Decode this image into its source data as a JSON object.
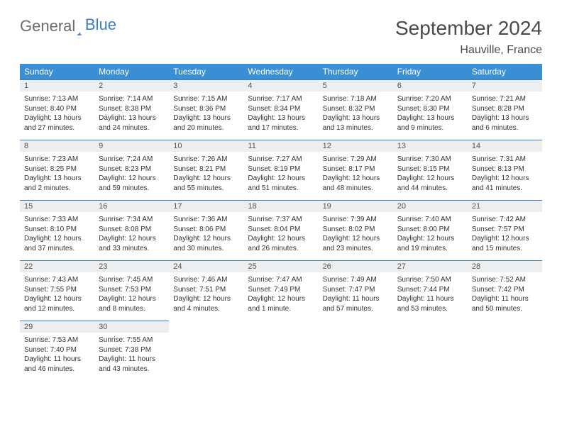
{
  "brand": {
    "part1": "General",
    "part2": "Blue"
  },
  "title": "September 2024",
  "location": "Hauville, France",
  "colors": {
    "header_bg": "#3a8fd4",
    "header_fg": "#ffffff",
    "row_divider": "#3a7fbf",
    "daynum_bg": "#eceeef",
    "text": "#333333",
    "logo_gray": "#6b6b6b",
    "logo_blue": "#3a7fbf",
    "page_bg": "#ffffff"
  },
  "typography": {
    "title_fontsize": 28,
    "location_fontsize": 16,
    "dayhead_fontsize": 12,
    "daynum_fontsize": 11,
    "detail_fontsize": 10
  },
  "weekdays": [
    "Sunday",
    "Monday",
    "Tuesday",
    "Wednesday",
    "Thursday",
    "Friday",
    "Saturday"
  ],
  "weeks": [
    [
      {
        "day": "1",
        "sunrise": "Sunrise: 7:13 AM",
        "sunset": "Sunset: 8:40 PM",
        "daylight": "Daylight: 13 hours and 27 minutes."
      },
      {
        "day": "2",
        "sunrise": "Sunrise: 7:14 AM",
        "sunset": "Sunset: 8:38 PM",
        "daylight": "Daylight: 13 hours and 24 minutes."
      },
      {
        "day": "3",
        "sunrise": "Sunrise: 7:15 AM",
        "sunset": "Sunset: 8:36 PM",
        "daylight": "Daylight: 13 hours and 20 minutes."
      },
      {
        "day": "4",
        "sunrise": "Sunrise: 7:17 AM",
        "sunset": "Sunset: 8:34 PM",
        "daylight": "Daylight: 13 hours and 17 minutes."
      },
      {
        "day": "5",
        "sunrise": "Sunrise: 7:18 AM",
        "sunset": "Sunset: 8:32 PM",
        "daylight": "Daylight: 13 hours and 13 minutes."
      },
      {
        "day": "6",
        "sunrise": "Sunrise: 7:20 AM",
        "sunset": "Sunset: 8:30 PM",
        "daylight": "Daylight: 13 hours and 9 minutes."
      },
      {
        "day": "7",
        "sunrise": "Sunrise: 7:21 AM",
        "sunset": "Sunset: 8:28 PM",
        "daylight": "Daylight: 13 hours and 6 minutes."
      }
    ],
    [
      {
        "day": "8",
        "sunrise": "Sunrise: 7:23 AM",
        "sunset": "Sunset: 8:25 PM",
        "daylight": "Daylight: 13 hours and 2 minutes."
      },
      {
        "day": "9",
        "sunrise": "Sunrise: 7:24 AM",
        "sunset": "Sunset: 8:23 PM",
        "daylight": "Daylight: 12 hours and 59 minutes."
      },
      {
        "day": "10",
        "sunrise": "Sunrise: 7:26 AM",
        "sunset": "Sunset: 8:21 PM",
        "daylight": "Daylight: 12 hours and 55 minutes."
      },
      {
        "day": "11",
        "sunrise": "Sunrise: 7:27 AM",
        "sunset": "Sunset: 8:19 PM",
        "daylight": "Daylight: 12 hours and 51 minutes."
      },
      {
        "day": "12",
        "sunrise": "Sunrise: 7:29 AM",
        "sunset": "Sunset: 8:17 PM",
        "daylight": "Daylight: 12 hours and 48 minutes."
      },
      {
        "day": "13",
        "sunrise": "Sunrise: 7:30 AM",
        "sunset": "Sunset: 8:15 PM",
        "daylight": "Daylight: 12 hours and 44 minutes."
      },
      {
        "day": "14",
        "sunrise": "Sunrise: 7:31 AM",
        "sunset": "Sunset: 8:13 PM",
        "daylight": "Daylight: 12 hours and 41 minutes."
      }
    ],
    [
      {
        "day": "15",
        "sunrise": "Sunrise: 7:33 AM",
        "sunset": "Sunset: 8:10 PM",
        "daylight": "Daylight: 12 hours and 37 minutes."
      },
      {
        "day": "16",
        "sunrise": "Sunrise: 7:34 AM",
        "sunset": "Sunset: 8:08 PM",
        "daylight": "Daylight: 12 hours and 33 minutes."
      },
      {
        "day": "17",
        "sunrise": "Sunrise: 7:36 AM",
        "sunset": "Sunset: 8:06 PM",
        "daylight": "Daylight: 12 hours and 30 minutes."
      },
      {
        "day": "18",
        "sunrise": "Sunrise: 7:37 AM",
        "sunset": "Sunset: 8:04 PM",
        "daylight": "Daylight: 12 hours and 26 minutes."
      },
      {
        "day": "19",
        "sunrise": "Sunrise: 7:39 AM",
        "sunset": "Sunset: 8:02 PM",
        "daylight": "Daylight: 12 hours and 23 minutes."
      },
      {
        "day": "20",
        "sunrise": "Sunrise: 7:40 AM",
        "sunset": "Sunset: 8:00 PM",
        "daylight": "Daylight: 12 hours and 19 minutes."
      },
      {
        "day": "21",
        "sunrise": "Sunrise: 7:42 AM",
        "sunset": "Sunset: 7:57 PM",
        "daylight": "Daylight: 12 hours and 15 minutes."
      }
    ],
    [
      {
        "day": "22",
        "sunrise": "Sunrise: 7:43 AM",
        "sunset": "Sunset: 7:55 PM",
        "daylight": "Daylight: 12 hours and 12 minutes."
      },
      {
        "day": "23",
        "sunrise": "Sunrise: 7:45 AM",
        "sunset": "Sunset: 7:53 PM",
        "daylight": "Daylight: 12 hours and 8 minutes."
      },
      {
        "day": "24",
        "sunrise": "Sunrise: 7:46 AM",
        "sunset": "Sunset: 7:51 PM",
        "daylight": "Daylight: 12 hours and 4 minutes."
      },
      {
        "day": "25",
        "sunrise": "Sunrise: 7:47 AM",
        "sunset": "Sunset: 7:49 PM",
        "daylight": "Daylight: 12 hours and 1 minute."
      },
      {
        "day": "26",
        "sunrise": "Sunrise: 7:49 AM",
        "sunset": "Sunset: 7:47 PM",
        "daylight": "Daylight: 11 hours and 57 minutes."
      },
      {
        "day": "27",
        "sunrise": "Sunrise: 7:50 AM",
        "sunset": "Sunset: 7:44 PM",
        "daylight": "Daylight: 11 hours and 53 minutes."
      },
      {
        "day": "28",
        "sunrise": "Sunrise: 7:52 AM",
        "sunset": "Sunset: 7:42 PM",
        "daylight": "Daylight: 11 hours and 50 minutes."
      }
    ],
    [
      {
        "day": "29",
        "sunrise": "Sunrise: 7:53 AM",
        "sunset": "Sunset: 7:40 PM",
        "daylight": "Daylight: 11 hours and 46 minutes."
      },
      {
        "day": "30",
        "sunrise": "Sunrise: 7:55 AM",
        "sunset": "Sunset: 7:38 PM",
        "daylight": "Daylight: 11 hours and 43 minutes."
      },
      null,
      null,
      null,
      null,
      null
    ]
  ]
}
